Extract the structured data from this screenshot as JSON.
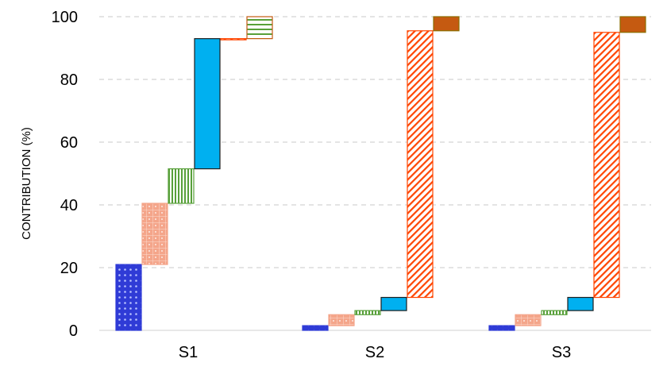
{
  "chart_data": {
    "type": "bar",
    "subtype": "waterfall",
    "title": "",
    "xlabel": "",
    "ylabel": "CONTRIBUTION (%)",
    "ylim": [
      0,
      100
    ],
    "yticks": [
      0,
      20,
      40,
      60,
      80,
      100
    ],
    "grid": "horizontal-dashed",
    "legend": "none",
    "categories": [
      "S1",
      "S2",
      "S3"
    ],
    "steps": [
      {
        "fill": "#2f3bd6",
        "pattern": "dots",
        "values": [
          [
            0,
            21
          ],
          [
            0,
            1.5
          ],
          [
            0,
            1.5
          ]
        ]
      },
      {
        "fill": "#f4a58a",
        "pattern": "grid-dots",
        "values": [
          [
            21,
            40.5
          ],
          [
            1.5,
            5
          ],
          [
            1.5,
            5
          ]
        ]
      },
      {
        "fill": "#58a03a",
        "pattern": "vertical-lines",
        "values": [
          [
            40.5,
            51.5
          ],
          [
            5,
            6.3
          ],
          [
            5,
            6.3
          ]
        ]
      },
      {
        "fill": "#00b0f0",
        "pattern": "solid",
        "values": [
          [
            51.5,
            93
          ],
          [
            6.3,
            10.5
          ],
          [
            6.3,
            10.5
          ]
        ]
      },
      {
        "fill": "#ff4500",
        "pattern": "diagonal-lines",
        "values": [
          [
            93,
            93
          ],
          [
            10.5,
            95.5
          ],
          [
            10.5,
            95
          ]
        ]
      },
      {
        "fill": "#c55a11",
        "pattern": "horizontal-lines",
        "values": [
          [
            93,
            100
          ],
          [
            95.5,
            100
          ],
          [
            95,
            100
          ]
        ]
      }
    ]
  }
}
